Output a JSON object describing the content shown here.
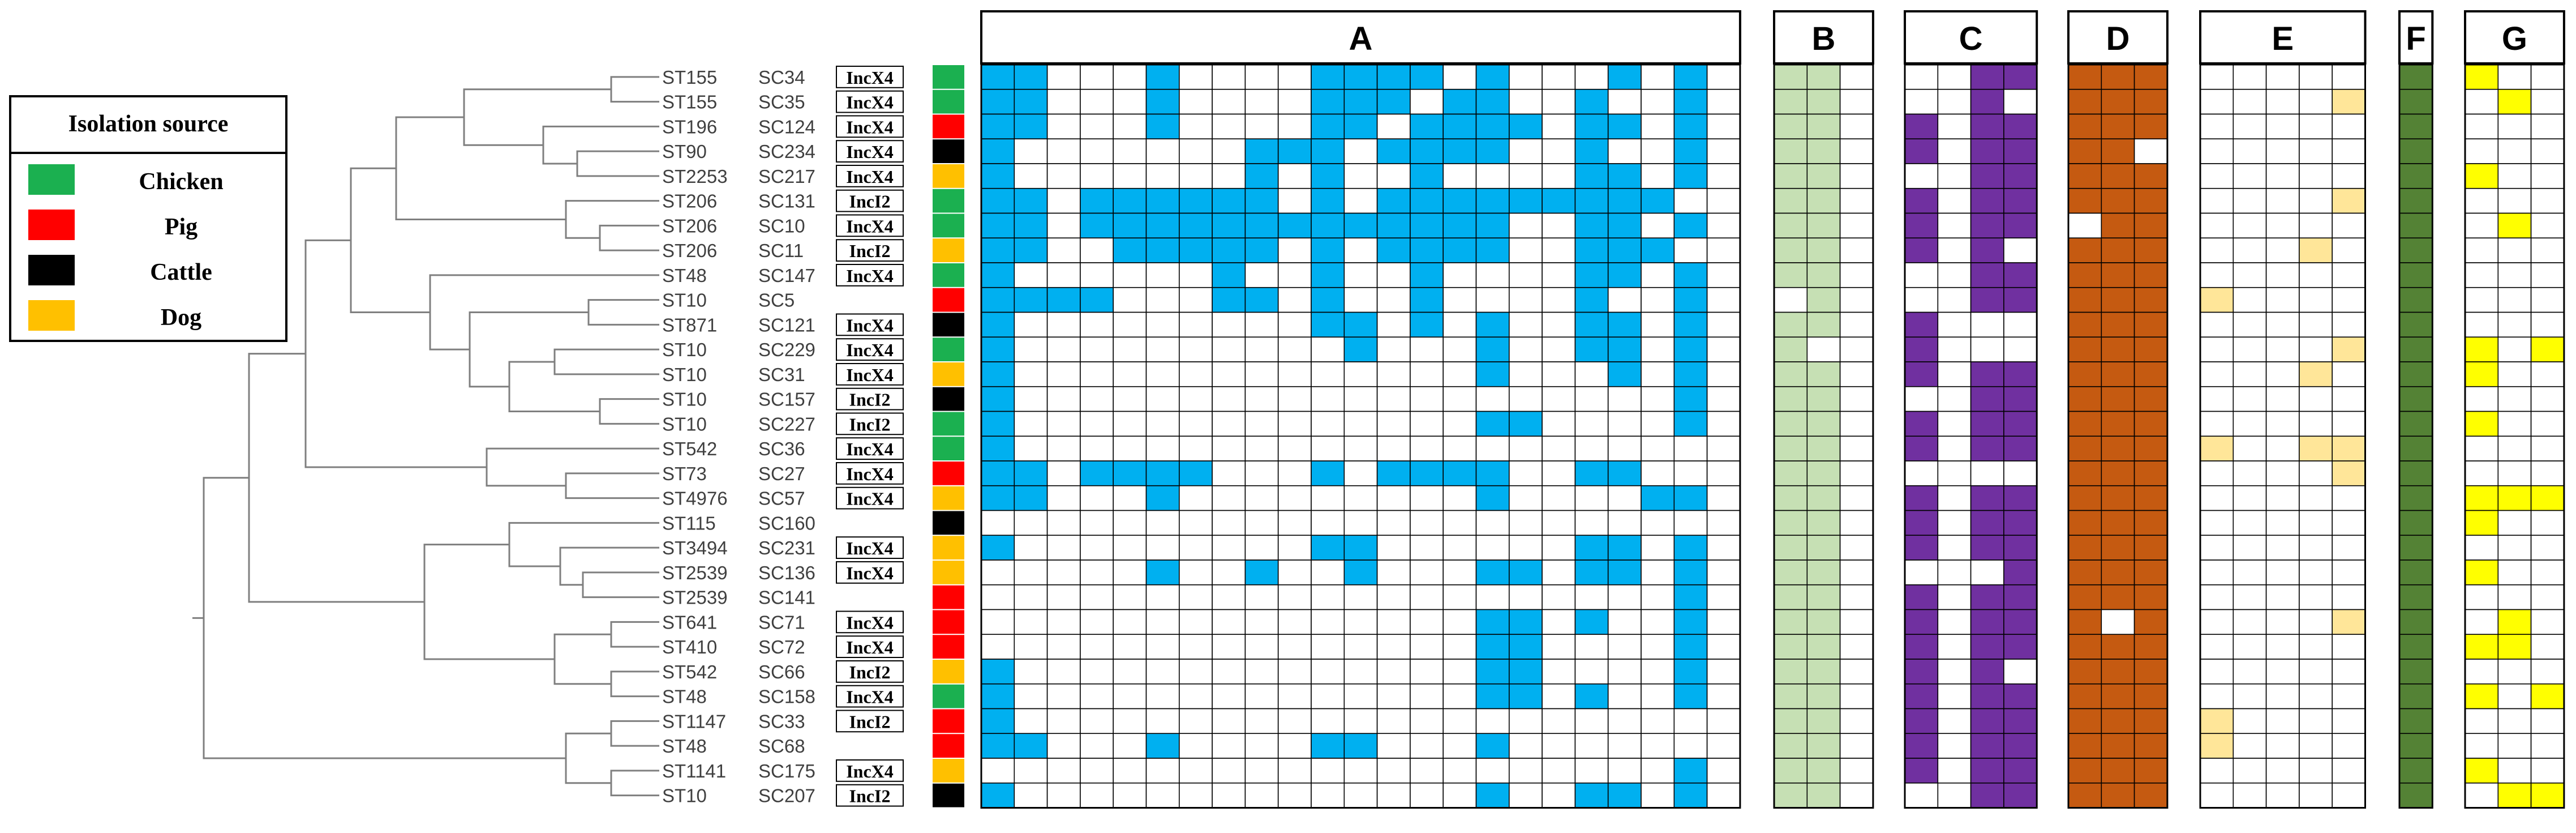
{
  "legend": {
    "title": "Isolation source",
    "items": [
      {
        "key": "chicken",
        "label": "Chicken",
        "color": "#1bb050"
      },
      {
        "key": "pig",
        "label": "Pig",
        "color": "#ff0000"
      },
      {
        "key": "cattle",
        "label": "Cattle",
        "color": "#000000"
      },
      {
        "key": "dog",
        "label": "Dog",
        "color": "#ffc000"
      }
    ]
  },
  "panels": [
    {
      "id": "A",
      "label": "A",
      "cols": 23,
      "color": "#00b0f0"
    },
    {
      "id": "B",
      "label": "B",
      "cols": 3,
      "color": "#c6e0b4"
    },
    {
      "id": "C",
      "label": "C",
      "cols": 4,
      "color": "#7030a0"
    },
    {
      "id": "D",
      "label": "D",
      "cols": 3,
      "color": "#c55a11"
    },
    {
      "id": "E",
      "label": "E",
      "cols": 5,
      "color": "#ffe699"
    },
    {
      "id": "F",
      "label": "F",
      "cols": 1,
      "color": "#548235"
    },
    {
      "id": "G",
      "label": "G",
      "cols": 3,
      "color": "#ffff00"
    }
  ],
  "rows": [
    {
      "st": "ST155",
      "sc": "SC34",
      "plasmid": "IncX4",
      "source": "chicken"
    },
    {
      "st": "ST155",
      "sc": "SC35",
      "plasmid": "IncX4",
      "source": "chicken"
    },
    {
      "st": "ST196",
      "sc": "SC124",
      "plasmid": "IncX4",
      "source": "pig"
    },
    {
      "st": "ST90",
      "sc": "SC234",
      "plasmid": "IncX4",
      "source": "cattle"
    },
    {
      "st": "ST2253",
      "sc": "SC217",
      "plasmid": "IncX4",
      "source": "dog"
    },
    {
      "st": "ST206",
      "sc": "SC131",
      "plasmid": "IncI2",
      "source": "chicken"
    },
    {
      "st": "ST206",
      "sc": "SC10",
      "plasmid": "IncX4",
      "source": "chicken"
    },
    {
      "st": "ST206",
      "sc": "SC11",
      "plasmid": "IncI2",
      "source": "dog"
    },
    {
      "st": "ST48",
      "sc": "SC147",
      "plasmid": "IncX4",
      "source": "chicken"
    },
    {
      "st": "ST10",
      "sc": "SC5",
      "plasmid": "",
      "source": "pig"
    },
    {
      "st": "ST871",
      "sc": "SC121",
      "plasmid": "IncX4",
      "source": "cattle"
    },
    {
      "st": "ST10",
      "sc": "SC229",
      "plasmid": "IncX4",
      "source": "chicken"
    },
    {
      "st": "ST10",
      "sc": "SC31",
      "plasmid": "IncX4",
      "source": "dog"
    },
    {
      "st": "ST10",
      "sc": "SC157",
      "plasmid": "IncI2",
      "source": "cattle"
    },
    {
      "st": "ST10",
      "sc": "SC227",
      "plasmid": "IncI2",
      "source": "chicken"
    },
    {
      "st": "ST542",
      "sc": "SC36",
      "plasmid": "IncX4",
      "source": "chicken"
    },
    {
      "st": "ST73",
      "sc": "SC27",
      "plasmid": "IncX4",
      "source": "pig"
    },
    {
      "st": "ST4976",
      "sc": "SC57",
      "plasmid": "IncX4",
      "source": "dog"
    },
    {
      "st": "ST115",
      "sc": "SC160",
      "plasmid": "",
      "source": "cattle"
    },
    {
      "st": "ST3494",
      "sc": "SC231",
      "plasmid": "IncX4",
      "source": "dog"
    },
    {
      "st": "ST2539",
      "sc": "SC136",
      "plasmid": "IncX4",
      "source": "dog"
    },
    {
      "st": "ST2539",
      "sc": "SC141",
      "plasmid": "",
      "source": "pig"
    },
    {
      "st": "ST641",
      "sc": "SC71",
      "plasmid": "IncX4",
      "source": "pig"
    },
    {
      "st": "ST410",
      "sc": "SC72",
      "plasmid": "IncX4",
      "source": "pig"
    },
    {
      "st": "ST542",
      "sc": "SC66",
      "plasmid": "IncI2",
      "source": "dog"
    },
    {
      "st": "ST48",
      "sc": "SC158",
      "plasmid": "IncX4",
      "source": "chicken"
    },
    {
      "st": "ST1147",
      "sc": "SC33",
      "plasmid": "IncI2",
      "source": "pig"
    },
    {
      "st": "ST48",
      "sc": "SC68",
      "plasmid": "",
      "source": "pig"
    },
    {
      "st": "ST1141",
      "sc": "SC175",
      "plasmid": "IncX4",
      "source": "dog"
    },
    {
      "st": "ST10",
      "sc": "SC207",
      "plasmid": "IncI2",
      "source": "cattle"
    }
  ],
  "matrix": {
    "A": [
      "11000100001111010001010",
      "11000100001110110010010",
      "11000100001101111011010",
      "10000000111011110010010",
      "10000000101001000011010",
      "11011111101011111111100",
      "11011111111111110011010",
      "11001111101011110011100",
      "10000001001001000011010",
      "11110001101001000010010",
      "10000000001101010011010",
      "10000000000100010011010",
      "10000000000000010001010",
      "10000000000000000000010",
      "10000000000000011000010",
      "10000000000000000000000",
      "11011110001011110011000",
      "11000100000000010000110",
      "00000000000000000000000",
      "10000000001100000011010",
      "00000100100100011011010",
      "00000000000000000000010",
      "00000000000000011010010",
      "00000000000000011000010",
      "10000000000000011000010",
      "10000000000000011010010",
      "10000000000000000000000",
      "11000100001100010000000",
      "00000000000000000000010",
      "10000000000000010011010"
    ],
    "B": [
      "110",
      "110",
      "110",
      "110",
      "110",
      "110",
      "110",
      "110",
      "110",
      "010",
      "110",
      "100",
      "110",
      "110",
      "110",
      "110",
      "110",
      "110",
      "110",
      "110",
      "110",
      "110",
      "110",
      "110",
      "110",
      "110",
      "110",
      "110",
      "110",
      "110"
    ],
    "C": [
      "0011",
      "0010",
      "1011",
      "1011",
      "0011",
      "1011",
      "1011",
      "1010",
      "0011",
      "0011",
      "1000",
      "1000",
      "1011",
      "0011",
      "1011",
      "1011",
      "0000",
      "1011",
      "1011",
      "1011",
      "0001",
      "1011",
      "1011",
      "1011",
      "1010",
      "1011",
      "1011",
      "1011",
      "1011",
      "0011"
    ],
    "D": [
      "111",
      "111",
      "111",
      "110",
      "111",
      "111",
      "011",
      "111",
      "111",
      "111",
      "111",
      "111",
      "111",
      "111",
      "111",
      "111",
      "111",
      "111",
      "111",
      "111",
      "111",
      "111",
      "101",
      "111",
      "111",
      "111",
      "111",
      "111",
      "111",
      "111"
    ],
    "E": [
      "00000",
      "00001",
      "00000",
      "00000",
      "00000",
      "00001",
      "00000",
      "00010",
      "00000",
      "10000",
      "00000",
      "00001",
      "00010",
      "00000",
      "00000",
      "10011",
      "00001",
      "00000",
      "00000",
      "00000",
      "00000",
      "00000",
      "00001",
      "00000",
      "00000",
      "00000",
      "10000",
      "10000",
      "00000",
      "00000"
    ],
    "F": [
      "1",
      "1",
      "1",
      "1",
      "1",
      "1",
      "1",
      "1",
      "1",
      "1",
      "1",
      "1",
      "1",
      "1",
      "1",
      "1",
      "1",
      "1",
      "1",
      "1",
      "1",
      "1",
      "1",
      "1",
      "1",
      "1",
      "1",
      "1",
      "1",
      "1"
    ],
    "G": [
      "100",
      "010",
      "000",
      "000",
      "100",
      "000",
      "010",
      "000",
      "000",
      "000",
      "000",
      "101",
      "100",
      "000",
      "100",
      "000",
      "000",
      "111",
      "100",
      "000",
      "100",
      "000",
      "010",
      "110",
      "000",
      "101",
      "000",
      "000",
      "100",
      "011"
    ]
  }
}
